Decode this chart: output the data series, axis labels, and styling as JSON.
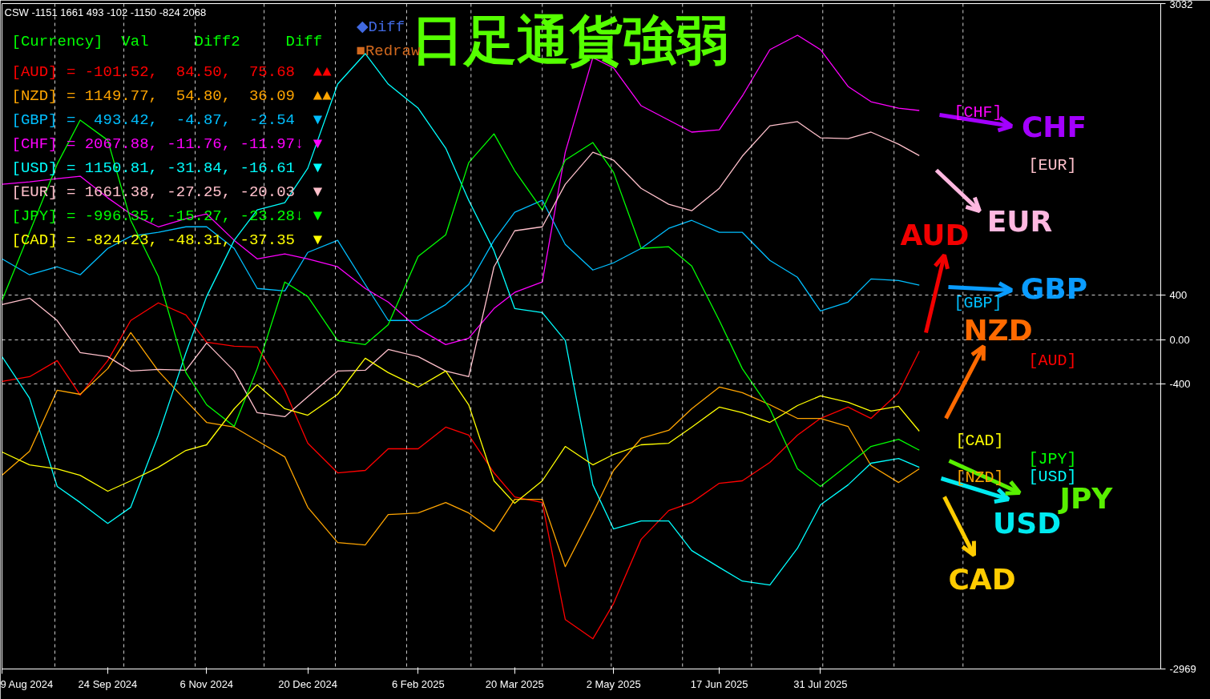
{
  "chart_data": {
    "type": "line",
    "title": "日足通貨強弱",
    "x": [
      "2024-08-09",
      "2024-08-21",
      "2024-09-02",
      "2024-09-12",
      "2024-09-24",
      "2024-10-04",
      "2024-10-16",
      "2024-10-28",
      "2024-11-06",
      "2024-11-18",
      "2024-11-28",
      "2024-12-10",
      "2024-12-20",
      "2025-01-02",
      "2025-01-14",
      "2025-01-24",
      "2025-02-06",
      "2025-02-18",
      "2025-02-28",
      "2025-03-11",
      "2025-03-20",
      "2025-04-01",
      "2025-04-11",
      "2025-04-23",
      "2025-05-02",
      "2025-05-14",
      "2025-05-26",
      "2025-06-05",
      "2025-06-17",
      "2025-06-27",
      "2025-07-09",
      "2025-07-21",
      "2025-07-31",
      "2025-08-12",
      "2025-08-22",
      "2025-09-03",
      "2025-09-12"
    ],
    "xlim": [
      "2024-08-09",
      "2025-12-26"
    ],
    "xticks": [
      {
        "value": "2024-08-09",
        "label": "9 Aug 2024"
      },
      {
        "value": "2024-09-24",
        "label": "24 Sep 2024"
      },
      {
        "value": "2024-11-06",
        "label": "6 Nov 2024"
      },
      {
        "value": "2024-12-20",
        "label": "20 Dec 2024"
      },
      {
        "value": "2025-02-06",
        "label": "6 Feb 2025"
      },
      {
        "value": "2025-03-20",
        "label": "20 Mar 2025"
      },
      {
        "value": "2025-05-02",
        "label": "2 May 2025"
      },
      {
        "value": "2025-06-17",
        "label": "17 Jun 2025"
      },
      {
        "value": "2025-07-31",
        "label": "31 Jul 2025"
      }
    ],
    "ylim": [
      -2969,
      3032
    ],
    "yticks": [
      3032,
      400,
      {
        "value": 0,
        "label": "0.00"
      },
      -400,
      -2969
    ],
    "grid": "y",
    "line_style": "solid",
    "ref_lines": [
      {
        "axis": "x",
        "value": "2024-09-01",
        "line_style": "dashed"
      },
      {
        "axis": "x",
        "value": "2024-10-01",
        "line_style": "dashed"
      },
      {
        "axis": "x",
        "value": "2024-11-01",
        "line_style": "dashed"
      },
      {
        "axis": "x",
        "value": "2024-12-01",
        "line_style": "dashed"
      },
      {
        "axis": "x",
        "value": "2025-01-01",
        "line_style": "dashed"
      },
      {
        "axis": "x",
        "value": "2025-02-01",
        "line_style": "dashed"
      },
      {
        "axis": "x",
        "value": "2025-03-01",
        "line_style": "dashed"
      },
      {
        "axis": "x",
        "value": "2025-04-01",
        "line_style": "dashed"
      },
      {
        "axis": "x",
        "value": "2025-05-01",
        "line_style": "dashed"
      },
      {
        "axis": "x",
        "value": "2025-06-01",
        "line_style": "dashed"
      },
      {
        "axis": "x",
        "value": "2025-07-01",
        "line_style": "dashed"
      },
      {
        "axis": "x",
        "value": "2025-08-01",
        "line_style": "dashed"
      },
      {
        "axis": "x",
        "value": "2025-09-01",
        "line_style": "dashed"
      },
      {
        "axis": "x",
        "value": "2025-10-01",
        "line_style": "dashed"
      }
    ],
    "series": [
      {
        "color": "#ff0000",
        "values": [
          -376,
          -333,
          -188,
          -499,
          -188,
          174,
          333,
          224,
          -22,
          -58,
          -65,
          -455,
          -933,
          -1200,
          -1178,
          -983,
          -983,
          -788,
          -860,
          -1200,
          -1417,
          -1468,
          -2523,
          -2697,
          -2379,
          -1800,
          -1540,
          -1468,
          -1294,
          -1272,
          -1106,
          -860,
          -709,
          -607,
          -709,
          -477,
          -102
        ]
      },
      {
        "color": "#ffa500",
        "values": [
          -1222,
          -1005,
          -455,
          -492,
          -260,
          65,
          -282,
          -549,
          -745,
          -788,
          -911,
          -1056,
          -1511,
          -1829,
          -1851,
          -1576,
          -1562,
          -1468,
          -1562,
          -1728,
          -1439,
          -1439,
          -2046,
          -1562,
          -1178,
          -889,
          -817,
          -622,
          -427,
          -477,
          -586,
          -709,
          -709,
          -781,
          -1135,
          -1287,
          -1164
        ]
      },
      {
        "color": "#00bfff",
        "values": [
          730,
          586,
          658,
          586,
          824,
          933,
          969,
          1019,
          1019,
          824,
          463,
          441,
          788,
          897,
          499,
          174,
          174,
          318,
          499,
          897,
          1150,
          1258,
          860,
          629,
          694,
          824,
          1005,
          1077,
          969,
          969,
          716,
          564,
          260,
          340,
          549,
          535,
          493
        ]
      },
      {
        "color": "#ff00ff",
        "values": [
          1403,
          1424,
          1453,
          1475,
          1280,
          1135,
          1019,
          1092,
          1135,
          897,
          730,
          774,
          730,
          658,
          463,
          340,
          101,
          -43,
          14,
          282,
          427,
          521,
          1692,
          2545,
          2451,
          2111,
          1981,
          1873,
          1894,
          2198,
          2617,
          2747,
          2617,
          2285,
          2147,
          2089,
          2068
        ]
      },
      {
        "color": "#00ffff",
        "values": [
          -152,
          -528,
          -1323,
          -1468,
          -1656,
          -1511,
          -860,
          -116,
          390,
          897,
          1171,
          1236,
          1547,
          2306,
          2581,
          2306,
          2089,
          1728,
          1258,
          803,
          282,
          246,
          -7,
          -1309,
          -1706,
          -1634,
          -1634,
          -1901,
          -2053,
          -2176,
          -2212,
          -1880,
          -1489,
          -1309,
          -1113,
          -1070,
          -1150
        ]
      },
      {
        "color": "#ffc0cb",
        "values": [
          318,
          376,
          174,
          -116,
          -152,
          -282,
          -268,
          -275,
          -29,
          -282,
          -658,
          -694,
          -513,
          -282,
          -275,
          -87,
          -152,
          -282,
          -333,
          658,
          983,
          1019,
          1403,
          1692,
          1620,
          1366,
          1222,
          1164,
          1366,
          1656,
          1930,
          1967,
          1822,
          1815,
          1873,
          1764,
          1661
        ]
      },
      {
        "color": "#00ff00",
        "values": [
          354,
          969,
          1583,
          1981,
          1800,
          1077,
          571,
          -296,
          -586,
          -781,
          -260,
          521,
          390,
          -7,
          -43,
          137,
          752,
          947,
          1598,
          1858,
          1526,
          1171,
          1620,
          1779,
          1511,
          824,
          839,
          665,
          174,
          -260,
          -622,
          -1164,
          -1323,
          -1128,
          -962,
          -897,
          -996
        ]
      },
      {
        "color": "#ffff00",
        "values": [
          -1012,
          -1128,
          -1164,
          -1222,
          -1366,
          -1272,
          -1150,
          -998,
          -947,
          -622,
          -405,
          -622,
          -680,
          -492,
          -166,
          -296,
          -427,
          -282,
          -586,
          -1272,
          -1475,
          -1272,
          -962,
          -1128,
          -1034,
          -947,
          -933,
          -788,
          -607,
          -658,
          -745,
          -593,
          -506,
          -564,
          -643,
          -600,
          -824
        ]
      }
    ],
    "annotations": [
      "CSW -1151 1661 493 -102 -1150 -824 2068",
      "[Currency]  Val     Diff2     Diff",
      "[AUD] = -101.52,  84.50,  75.68  ▲▲",
      "[NZD] = 1149.77,  54.80,  36.09  ▲▲",
      "[GBP] =  493.42,  -4.87,  -2.54  ▼",
      "[CHF] = 2067.88, -11.76, -11.97↓ ▼",
      "[USD] = 1150.81, -31.84, -16.61  ▼",
      "[EUR] = 1661.38, -27.25, -20.03  ▼",
      "[JPY] = -996.35, -15.27, -23.28↓ ▼",
      "[CAD] = -824.23, -48.31, -37.35  ▼",
      "◆Diff",
      "■Redraw",
      "AUD",
      "NZD",
      "GBP",
      "CHF",
      "USD",
      "EUR",
      "JPY",
      "CAD",
      "[AUD]",
      "[NZD]",
      "[GBP]",
      "[CHF]",
      "[USD]",
      "[EUR]",
      "[JPY]",
      "[CAD]"
    ]
  }
}
